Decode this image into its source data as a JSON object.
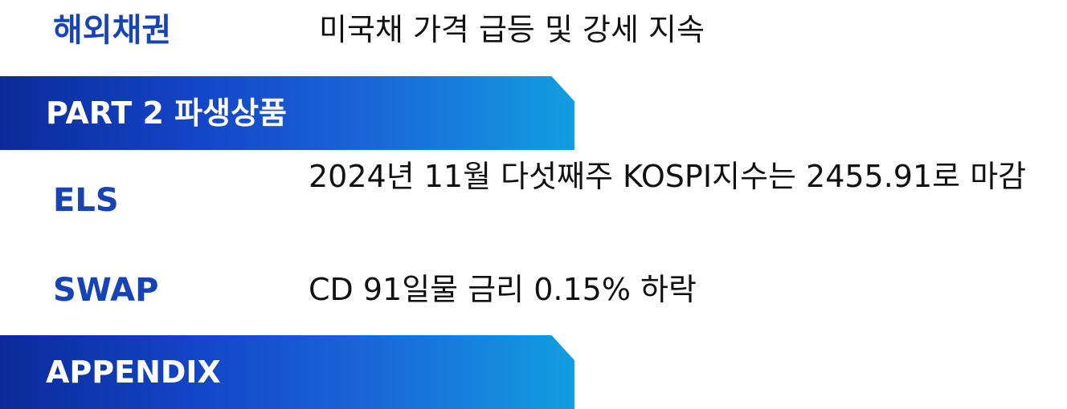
{
  "overseas_bond": {
    "label": "해외채권",
    "text": "미국채 가격 급등 및 강세 지속"
  },
  "part2": {
    "title": "PART 2 파생상품"
  },
  "els": {
    "label": "ELS",
    "text": "2024년 11월 다섯째주 KOSPI지수는 2455.91로 마감"
  },
  "swap": {
    "label": "SWAP",
    "text": "CD 91일물 금리 0.15% 하락"
  },
  "appendix": {
    "title": "APPENDIX"
  },
  "colors": {
    "label_blue": "#1743b8",
    "banner_start": "#0b2a9a",
    "banner_end": "#129ee0"
  }
}
